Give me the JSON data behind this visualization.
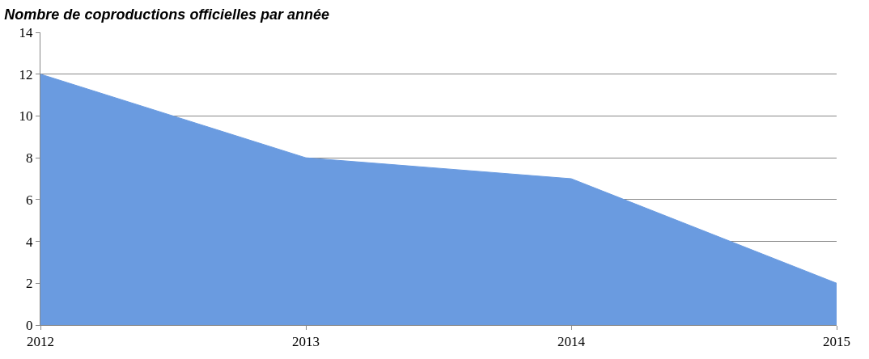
{
  "chart_data": {
    "type": "area",
    "title": "Nombre de coproductions officielles par année",
    "categories": [
      "2012",
      "2013",
      "2014",
      "2015"
    ],
    "series": [
      {
        "color": "#6a9be0",
        "values": [
          12,
          8,
          7,
          2
        ]
      }
    ],
    "ylim": [
      0,
      14
    ],
    "yticks": [
      0,
      2,
      4,
      6,
      8,
      10,
      12,
      14
    ],
    "grid": "y",
    "legend": false
  }
}
